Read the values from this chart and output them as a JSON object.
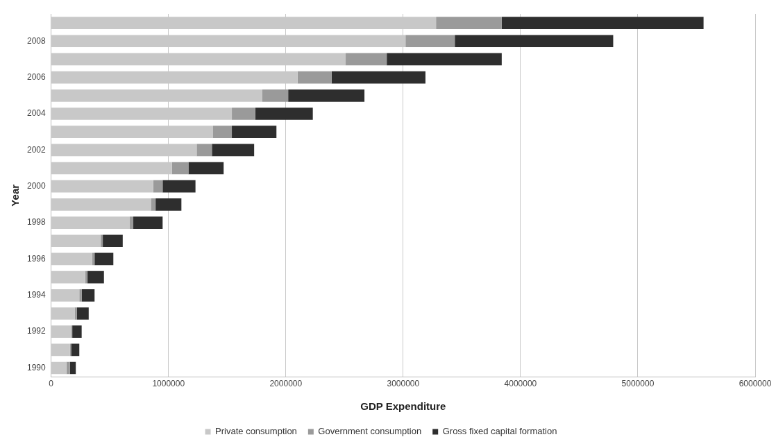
{
  "chart_data": {
    "type": "bar",
    "orientation": "horizontal",
    "stacked": true,
    "xlabel": "GDP Expenditure",
    "ylabel": "Year",
    "categories": [
      null,
      "2008",
      null,
      "2006",
      null,
      "2004",
      null,
      "2002",
      null,
      "2000",
      null,
      "1998",
      null,
      "1996",
      null,
      "1994",
      null,
      "1992",
      null,
      "1990"
    ],
    "series": [
      {
        "name": "Private consumption",
        "color": "#c8c8c8",
        "values": [
          3280000,
          3020000,
          2510000,
          2100000,
          1800000,
          1540000,
          1380000,
          1240000,
          1030000,
          870000,
          850000,
          670000,
          420000,
          350000,
          290000,
          240000,
          200000,
          170000,
          160000,
          130000
        ]
      },
      {
        "name": "Government consumption",
        "color": "#9a9a9a",
        "values": [
          560000,
          420000,
          350000,
          290000,
          220000,
          200000,
          160000,
          130000,
          140000,
          80000,
          40000,
          30000,
          20000,
          20000,
          20000,
          20000,
          20000,
          10000,
          10000,
          30000
        ]
      },
      {
        "name": "Gross fixed capital formation",
        "color": "#2e2e2e",
        "values": [
          1720000,
          1350000,
          980000,
          800000,
          650000,
          490000,
          380000,
          360000,
          300000,
          280000,
          220000,
          250000,
          170000,
          160000,
          140000,
          110000,
          100000,
          80000,
          70000,
          50000
        ]
      }
    ],
    "xlim": [
      0,
      6000000
    ],
    "xticks": [
      0,
      1000000,
      2000000,
      3000000,
      4000000,
      5000000,
      6000000
    ],
    "grid": "x",
    "legend": "bottom"
  }
}
